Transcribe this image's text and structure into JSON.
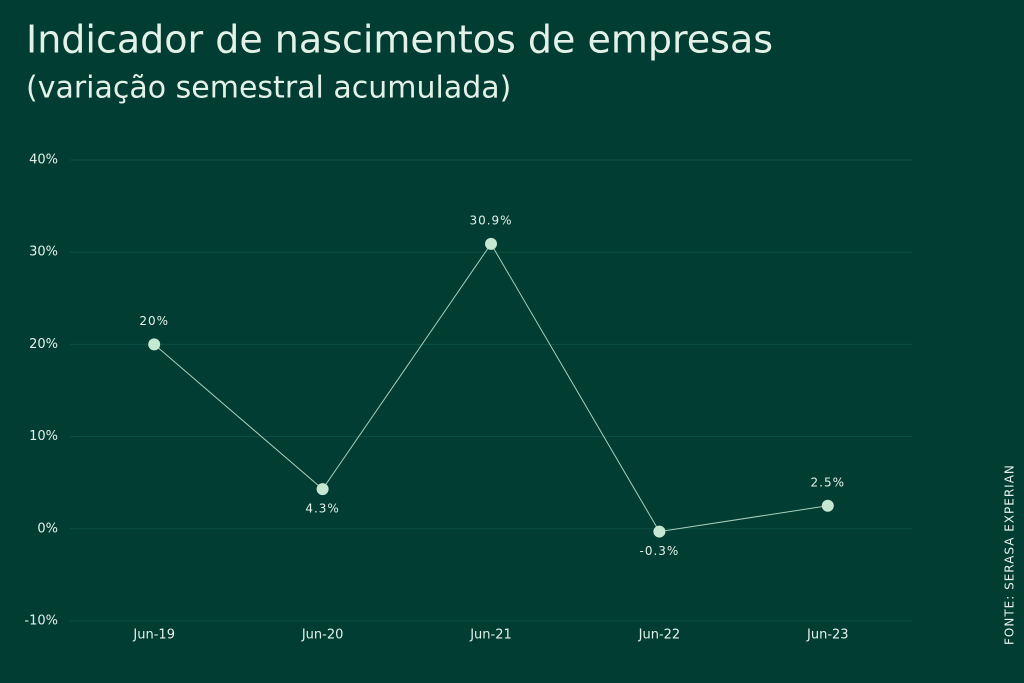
{
  "chart_data": {
    "type": "line",
    "title": "Indicador de nascimentos de empresas",
    "subtitle": "(variação semestral acumulada)",
    "source": "FONTE: SERASA EXPERIAN",
    "categories": [
      "Jun-19",
      "Jun-20",
      "Jun-21",
      "Jun-22",
      "Jun-23"
    ],
    "series": [
      {
        "name": "Indicador",
        "color": "#c6e8d3",
        "values": [
          20,
          4.3,
          30.9,
          -0.3,
          2.5
        ],
        "value_labels": [
          "20%",
          "4.3%",
          "30.9%",
          "-0.3%",
          "2.5%"
        ]
      }
    ],
    "ylim": [
      -10,
      40
    ],
    "yticks": [
      {
        "value": -10,
        "label": "-10%"
      },
      {
        "value": 0,
        "label": "0%"
      },
      {
        "value": 10,
        "label": "10%"
      },
      {
        "value": 20,
        "label": "20%"
      },
      {
        "value": 30,
        "label": "30%"
      },
      {
        "value": 40,
        "label": "40%"
      }
    ],
    "grid": true
  }
}
